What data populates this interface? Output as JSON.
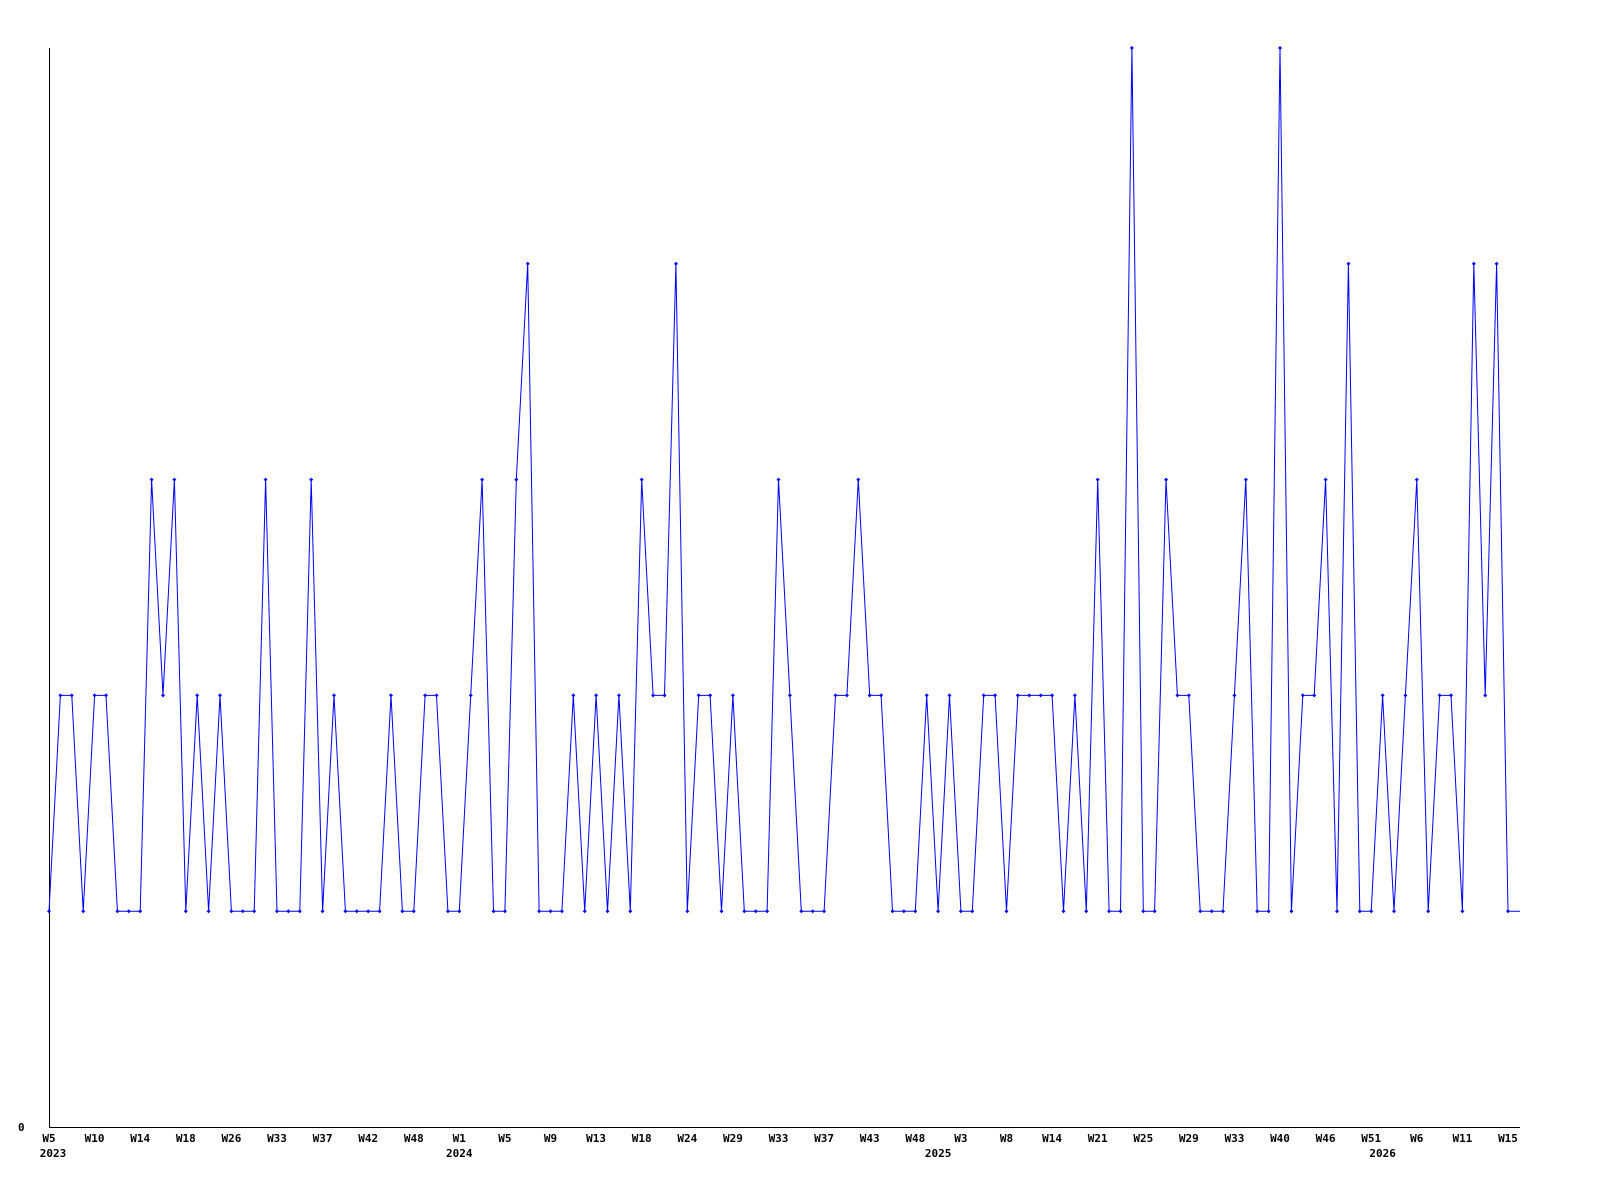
{
  "chart_data": {
    "type": "line",
    "title": "",
    "xlabel": "",
    "ylabel": "",
    "ylim": [
      0,
      5
    ],
    "y_tick_labels": [
      "0"
    ],
    "grid": false,
    "line_color": "#0000ff",
    "x_tick_labels": [
      "W5",
      "W10",
      "W14",
      "W18",
      "W26",
      "W33",
      "W37",
      "W42",
      "W48",
      "W1",
      "W5",
      "W9",
      "W13",
      "W18",
      "W24",
      "W29",
      "W33",
      "W37",
      "W43",
      "W48",
      "W3",
      "W8",
      "W14",
      "W21",
      "W25",
      "W29",
      "W33",
      "W40",
      "W46",
      "W51",
      "W6",
      "W11",
      "W15"
    ],
    "year_labels": [
      {
        "label": "2023",
        "index": 0
      },
      {
        "label": "2024",
        "index": 36
      },
      {
        "label": "2025",
        "index": 78
      },
      {
        "label": "2026",
        "index": 117
      }
    ],
    "values": [
      1,
      2,
      2,
      1,
      2,
      2,
      1,
      1,
      1,
      3,
      2,
      3,
      1,
      2,
      1,
      2,
      1,
      1,
      1,
      3,
      1,
      1,
      1,
      3,
      1,
      2,
      1,
      1,
      1,
      1,
      2,
      1,
      1,
      2,
      2,
      1,
      1,
      2,
      3,
      1,
      1,
      3,
      4,
      1,
      1,
      1,
      2,
      1,
      2,
      1,
      2,
      1,
      3,
      2,
      2,
      4,
      1,
      2,
      2,
      1,
      2,
      1,
      1,
      1,
      3,
      2,
      1,
      1,
      1,
      2,
      2,
      3,
      2,
      2,
      1,
      1,
      1,
      2,
      1,
      2,
      1,
      1,
      2,
      2,
      1,
      2,
      2,
      2,
      2,
      1,
      2,
      1,
      3,
      1,
      1,
      5,
      1,
      1,
      3,
      2,
      2,
      1,
      1,
      1,
      2,
      3,
      1,
      1,
      5,
      1,
      2,
      2,
      3,
      1,
      4,
      1,
      1,
      2,
      1,
      2,
      3,
      1,
      2,
      2,
      1,
      4,
      2,
      4,
      1
    ]
  }
}
